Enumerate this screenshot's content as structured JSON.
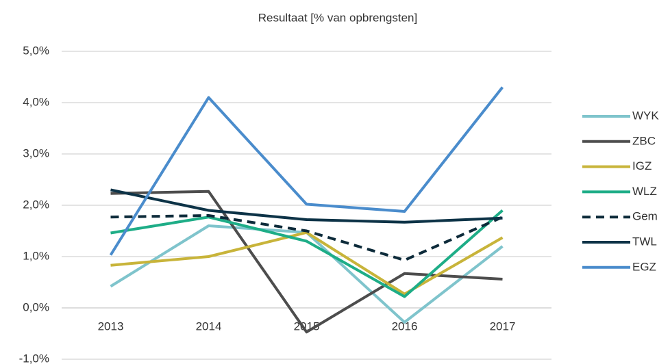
{
  "chart_data": {
    "type": "line",
    "title": "Resultaat [% van opbrengsten]",
    "categories": [
      "2013",
      "2014",
      "2015",
      "2016",
      "2017"
    ],
    "ylim": [
      -1,
      5
    ],
    "yticks": [
      {
        "value": -1,
        "label": "-1,0%"
      },
      {
        "value": 0,
        "label": "0,0%"
      },
      {
        "value": 1,
        "label": "1,0%"
      },
      {
        "value": 2,
        "label": "2,0%"
      },
      {
        "value": 3,
        "label": "3,0%"
      },
      {
        "value": 4,
        "label": "4,0%"
      },
      {
        "value": 5,
        "label": "5,0%"
      }
    ],
    "grid": true,
    "legend": "right",
    "series": [
      {
        "name": "WYK",
        "color": "#7fc4cc",
        "values": [
          0.42,
          1.6,
          1.47,
          -0.28,
          1.2
        ]
      },
      {
        "name": "ZBC",
        "color": "#4d4d4d",
        "values": [
          2.23,
          2.27,
          -0.47,
          0.67,
          0.56
        ]
      },
      {
        "name": "IGZ",
        "color": "#c8b43a",
        "values": [
          0.83,
          1.0,
          1.47,
          0.27,
          1.37
        ]
      },
      {
        "name": "WLZ",
        "color": "#1ead87",
        "values": [
          1.46,
          1.77,
          1.3,
          0.22,
          1.9
        ]
      },
      {
        "name": "Gem",
        "color": "#0d2b3a",
        "dashed": true,
        "values": [
          1.77,
          1.8,
          1.5,
          0.93,
          1.77
        ]
      },
      {
        "name": "TWL",
        "color": "#0d3347",
        "values": [
          2.3,
          1.9,
          1.72,
          1.67,
          1.75
        ]
      },
      {
        "name": "EGZ",
        "color": "#4a8ccc",
        "values": [
          1.03,
          4.1,
          2.02,
          1.88,
          4.3
        ]
      }
    ]
  }
}
